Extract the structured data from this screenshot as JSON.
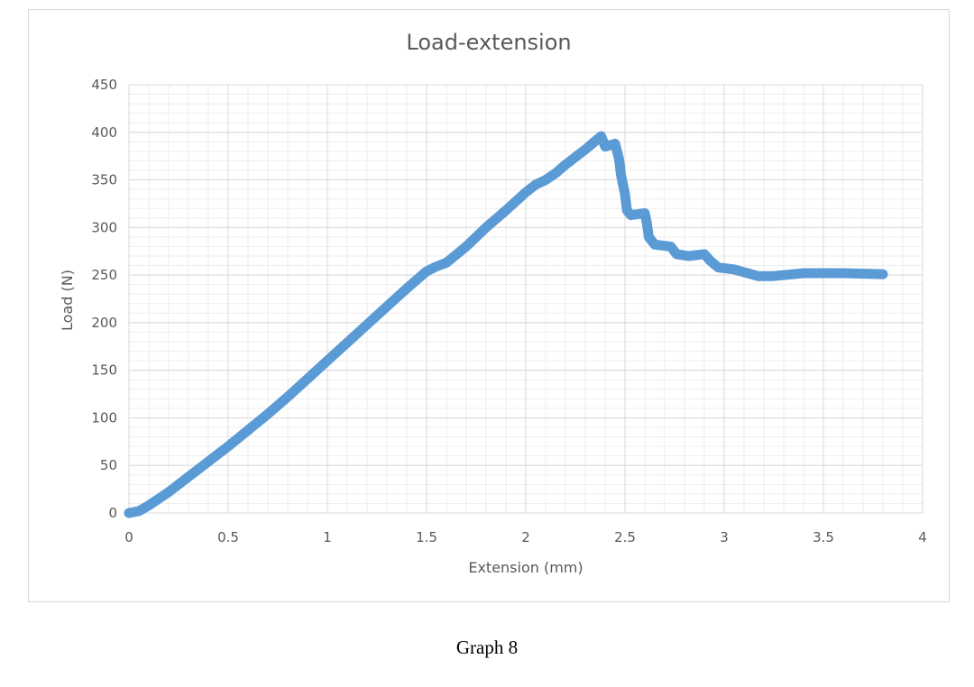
{
  "caption": "Graph 8",
  "colors": {
    "series": "#5b9bd5",
    "grid_major": "#d9d9d9",
    "grid_minor": "#eeeeee",
    "text": "#595959",
    "border": "#d9d9d9"
  },
  "chart_data": {
    "type": "scatter",
    "title": "Load-extension",
    "xlabel": "Extension (mm)",
    "ylabel": "Load (N)",
    "xlim": [
      0,
      4
    ],
    "ylim": [
      0,
      450
    ],
    "x_ticks": [
      "0",
      "0.5",
      "1",
      "1.5",
      "2",
      "2.5",
      "3",
      "3.5",
      "4"
    ],
    "y_ticks": [
      "0",
      "50",
      "100",
      "150",
      "200",
      "250",
      "300",
      "350",
      "400",
      "450"
    ],
    "x_major_step": 0.5,
    "x_minor_step": 0.1,
    "y_major_step": 50,
    "y_minor_step": 10,
    "grid": true,
    "legend": null,
    "series": [
      {
        "name": "Load",
        "x": [
          0,
          0.05,
          0.1,
          0.2,
          0.3,
          0.4,
          0.5,
          0.6,
          0.7,
          0.8,
          0.9,
          1.0,
          1.1,
          1.2,
          1.3,
          1.4,
          1.5,
          1.55,
          1.6,
          1.7,
          1.8,
          1.9,
          2.0,
          2.05,
          2.1,
          2.15,
          2.2,
          2.3,
          2.38,
          2.4,
          2.45,
          2.46,
          2.47,
          2.48,
          2.49,
          2.5,
          2.51,
          2.53,
          2.6,
          2.61,
          2.62,
          2.65,
          2.73,
          2.76,
          2.82,
          2.9,
          2.93,
          2.97,
          3.05,
          3.1,
          3.17,
          3.25,
          3.4,
          3.6,
          3.8
        ],
        "y": [
          0,
          2,
          8,
          22,
          38,
          54,
          70,
          87,
          104,
          122,
          141,
          160,
          179,
          198,
          217,
          236,
          254,
          259,
          263,
          280,
          300,
          318,
          337,
          345,
          350,
          357,
          366,
          382,
          396,
          385,
          388,
          380,
          372,
          355,
          345,
          335,
          318,
          313,
          315,
          305,
          290,
          282,
          280,
          272,
          270,
          272,
          265,
          258,
          256,
          253,
          249,
          249,
          252,
          252,
          251
        ]
      }
    ]
  }
}
